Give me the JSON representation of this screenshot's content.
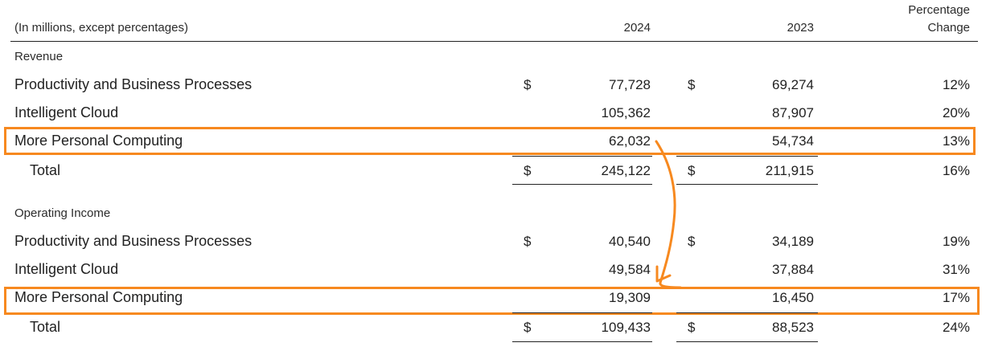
{
  "header": {
    "units_label": "(In millions, except percentages)",
    "col_2024": "2024",
    "col_2023": "2023",
    "col_change_line1": "Percentage",
    "col_change_line2": "Change"
  },
  "currency_symbol": "$",
  "highlight_color": "#f7891f",
  "revenue": {
    "title": "Revenue",
    "rows": [
      {
        "label": "Productivity and Business Processes",
        "v2024": "77,728",
        "v2023": "69,274",
        "change": "12%"
      },
      {
        "label": "Intelligent Cloud",
        "v2024": "105,362",
        "v2023": "87,907",
        "change": "20%"
      },
      {
        "label": "More Personal Computing",
        "v2024": "62,032",
        "v2023": "54,734",
        "change": "13%"
      }
    ],
    "total": {
      "label": "Total",
      "v2024": "245,122",
      "v2023": "211,915",
      "change": "16%"
    }
  },
  "operating_income": {
    "title": "Operating Income",
    "rows": [
      {
        "label": "Productivity and Business Processes",
        "v2024": "40,540",
        "v2023": "34,189",
        "change": "19%"
      },
      {
        "label": "Intelligent Cloud",
        "v2024": "49,584",
        "v2023": "37,884",
        "change": "31%"
      },
      {
        "label": "More Personal Computing",
        "v2024": "19,309",
        "v2023": "16,450",
        "change": "17%"
      }
    ],
    "total": {
      "label": "Total",
      "v2024": "109,433",
      "v2023": "88,523",
      "change": "24%"
    }
  }
}
